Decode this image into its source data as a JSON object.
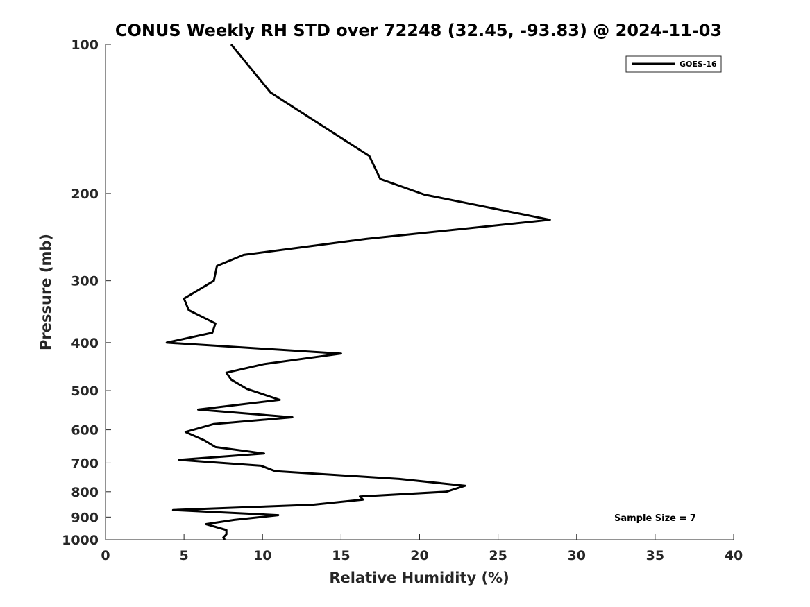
{
  "chart_data": {
    "type": "line",
    "title": "CONUS Weekly RH STD over 72248 (32.45, -93.83) @ 2024-11-03",
    "xlabel": "Relative Humidity (%)",
    "ylabel": "Pressure (mb)",
    "xlim": [
      0,
      40
    ],
    "ylim": [
      100,
      1000
    ],
    "y_scale": "log",
    "y_reversed": true,
    "x_ticks": [
      "0",
      "5",
      "10",
      "15",
      "20",
      "25",
      "30",
      "35",
      "40"
    ],
    "y_ticks": [
      "100",
      "200",
      "300",
      "400",
      "500",
      "600",
      "700",
      "800",
      "900",
      "1000"
    ],
    "grid": false,
    "legend_position": "top-right",
    "series": [
      {
        "name": "GOES-16",
        "color": "#000000",
        "points": [
          [
            8.0,
            100
          ],
          [
            10.5,
            125
          ],
          [
            16.8,
            168
          ],
          [
            17.5,
            187
          ],
          [
            20.3,
            201
          ],
          [
            28.3,
            226
          ],
          [
            16.6,
            247
          ],
          [
            8.8,
            266
          ],
          [
            7.1,
            280
          ],
          [
            6.9,
            300
          ],
          [
            5.0,
            326
          ],
          [
            5.3,
            344
          ],
          [
            7.0,
            366
          ],
          [
            6.8,
            382
          ],
          [
            3.9,
            400
          ],
          [
            15.0,
            421
          ],
          [
            10.1,
            442
          ],
          [
            7.7,
            460
          ],
          [
            8.0,
            475
          ],
          [
            9.0,
            496
          ],
          [
            11.1,
            522
          ],
          [
            5.9,
            546
          ],
          [
            11.9,
            566
          ],
          [
            6.9,
            584
          ],
          [
            5.1,
            606
          ],
          [
            6.3,
            630
          ],
          [
            7.0,
            650
          ],
          [
            10.1,
            670
          ],
          [
            4.7,
            690
          ],
          [
            9.9,
            709
          ],
          [
            10.8,
            727
          ],
          [
            18.7,
            754
          ],
          [
            22.9,
            778
          ],
          [
            21.7,
            800
          ],
          [
            16.2,
            818
          ],
          [
            16.4,
            830
          ],
          [
            13.2,
            850
          ],
          [
            4.3,
            871
          ],
          [
            11.0,
            892
          ],
          [
            8.2,
            912
          ],
          [
            6.4,
            930
          ],
          [
            7.7,
            956
          ],
          [
            7.7,
            975
          ],
          [
            7.5,
            990
          ],
          [
            7.6,
            1000
          ]
        ]
      }
    ],
    "annotations": [
      "Sample Size = 7"
    ]
  }
}
